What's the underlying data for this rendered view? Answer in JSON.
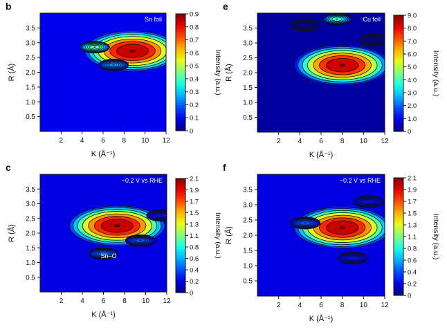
{
  "chart_data": [
    {
      "type": "heatmap",
      "panel_letter": "b",
      "inset_label": "Sn foil",
      "xlabel": "K (Å⁻¹)",
      "ylabel": "R (Å)",
      "colorbar_label": "Intensity (a.u.)",
      "xlim": [
        0,
        12
      ],
      "ylim": [
        0,
        4
      ],
      "xticks": [
        "2",
        "4",
        "6",
        "8",
        "10",
        "12"
      ],
      "yticks": [
        "0.5",
        "1.0",
        "1.5",
        "2.0",
        "2.5",
        "3.0",
        "3.5"
      ],
      "colorbar_ticks": [
        "0",
        "0.1",
        "0.2",
        "0.3",
        "0.4",
        "0.5",
        "0.6",
        "0.7",
        "0.8",
        "0.9"
      ],
      "color_range": [
        0,
        0.9
      ],
      "background_level": 0.1,
      "peaks": [
        {
          "k": 8.8,
          "r": 2.72,
          "value": 0.9
        },
        {
          "k": 5.2,
          "r": 2.85,
          "value": 0.45
        },
        {
          "k": 7.0,
          "r": 2.25,
          "value": 0.25
        },
        {
          "k": 6.5,
          "r": 1.6,
          "value": 0.05
        },
        {
          "k": 8.0,
          "r": 1.4,
          "value": 0.05
        }
      ]
    },
    {
      "type": "heatmap",
      "panel_letter": "e",
      "inset_label": "Cu foil",
      "xlabel": "K (Å⁻¹)",
      "ylabel": "R (Å)",
      "colorbar_label": "Intensity (a.u.)",
      "xlim": [
        0,
        12
      ],
      "ylim": [
        0,
        4
      ],
      "xticks": [
        "2",
        "4",
        "6",
        "8",
        "10",
        "12"
      ],
      "yticks": [
        "0.5",
        "1.0",
        "1.5",
        "2.0",
        "2.5",
        "3.0",
        "3.5"
      ],
      "colorbar_ticks": [
        "0",
        "1.0",
        "2.0",
        "3.0",
        "4.0",
        "5.0",
        "6.0",
        "7.0",
        "8.0",
        "9.0"
      ],
      "color_range": [
        0,
        9.0
      ],
      "background_level": 0.3,
      "peaks": [
        {
          "k": 8.0,
          "r": 2.25,
          "value": 9.0
        },
        {
          "k": 7.5,
          "r": 3.8,
          "value": 4.0
        },
        {
          "k": 4.5,
          "r": 3.6,
          "value": 0.5
        },
        {
          "k": 11.0,
          "r": 3.1,
          "value": 0.5
        }
      ]
    },
    {
      "type": "heatmap",
      "panel_letter": "c",
      "inset_label": "−0.2 V vs RHE",
      "annotation": "Sn–O",
      "xlabel": "K (Å⁻¹)",
      "ylabel": "R (Å)",
      "colorbar_label": "Intensity (a.u.)",
      "xlim": [
        0,
        12
      ],
      "ylim": [
        0,
        4
      ],
      "xticks": [
        "2",
        "4",
        "6",
        "8",
        "10",
        "12"
      ],
      "yticks": [
        "0.5",
        "1.0",
        "1.5",
        "2.0",
        "2.5",
        "3.0",
        "3.5"
      ],
      "colorbar_ticks": [
        "0",
        "0.2",
        "0.4",
        "0.6",
        "0.8",
        "1.1",
        "1.3",
        "1.5",
        "1.7",
        "1.9",
        "2.1"
      ],
      "color_range": [
        0,
        2.1
      ],
      "background_level": 0.2,
      "peaks": [
        {
          "k": 7.3,
          "r": 2.25,
          "value": 2.1
        },
        {
          "k": 9.5,
          "r": 1.75,
          "value": 0.45
        },
        {
          "k": 6.0,
          "r": 1.3,
          "value": 0.5
        },
        {
          "k": 11.5,
          "r": 2.6,
          "value": 0.3
        }
      ]
    },
    {
      "type": "heatmap",
      "panel_letter": "f",
      "inset_label": "−0.2 V vs RHE",
      "xlabel": "K (Å⁻¹)",
      "ylabel": "R (Å)",
      "colorbar_label": "Intensity (a.u.)",
      "xlim": [
        0,
        12
      ],
      "ylim": [
        0,
        4
      ],
      "xticks": [
        "2",
        "4",
        "6",
        "8",
        "10",
        "12"
      ],
      "yticks": [
        "0.5",
        "1.0",
        "1.5",
        "2.0",
        "2.5",
        "3.0",
        "3.5"
      ],
      "colorbar_ticks": [
        "0",
        "0.2",
        "0.4",
        "0.6",
        "0.8",
        "1.1",
        "1.3",
        "1.5",
        "1.7",
        "1.9",
        "2.1"
      ],
      "color_range": [
        0,
        2.1
      ],
      "background_level": 0.2,
      "peaks": [
        {
          "k": 8.0,
          "r": 2.25,
          "value": 2.1
        },
        {
          "k": 4.5,
          "r": 2.4,
          "value": 0.45
        },
        {
          "k": 9.0,
          "r": 1.25,
          "value": 0.3
        },
        {
          "k": 10.5,
          "r": 3.1,
          "value": 0.3
        }
      ]
    }
  ]
}
